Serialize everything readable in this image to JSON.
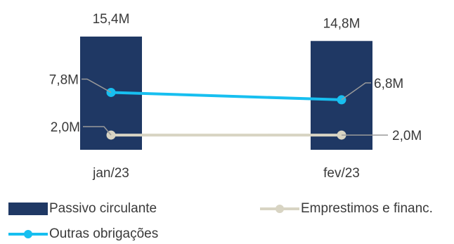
{
  "chart_data": {
    "type": "bar",
    "categories": [
      "jan/23",
      "fev/23"
    ],
    "series": [
      {
        "name": "Passivo circulante",
        "type": "bar",
        "values": [
          15.4,
          14.8
        ],
        "labels": [
          "15,4M",
          "14,8M"
        ],
        "color": "#1f3864"
      },
      {
        "name": "Outras obrigações",
        "type": "line",
        "values": [
          7.8,
          6.8
        ],
        "labels": [
          "7,8M",
          "6,8M"
        ],
        "color": "#17bff0"
      },
      {
        "name": "Emprestimos e financ.",
        "type": "line",
        "values": [
          2.0,
          2.0
        ],
        "labels": [
          "2,0M",
          "2,0M"
        ],
        "color": "#d8d4c3"
      }
    ],
    "grid": false,
    "legend": "bottom"
  },
  "legend": {
    "items": [
      {
        "label": "Passivo circulante",
        "kind": "bar",
        "color": "#1f3864"
      },
      {
        "label": "Emprestimos e financ.",
        "kind": "line",
        "color": "#d8d4c3"
      },
      {
        "label": "Outras obrigações",
        "kind": "line",
        "color": "#17bff0"
      }
    ]
  }
}
